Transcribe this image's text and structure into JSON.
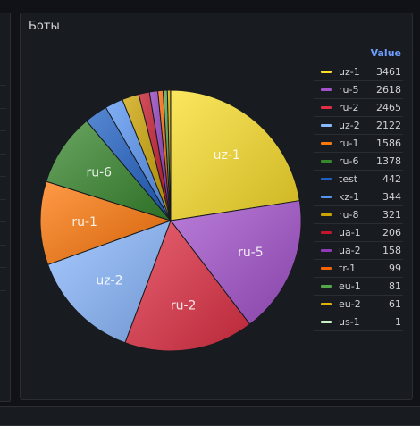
{
  "panel": {
    "title": "Боты"
  },
  "legend": {
    "header": "Value"
  },
  "chart_data": {
    "type": "pie",
    "title": "Боты",
    "legend_placement": "right",
    "slices": [
      {
        "label": "uz-1",
        "value": 3461,
        "color": "#fade2a"
      },
      {
        "label": "ru-5",
        "value": 2618,
        "color": "#a352cc"
      },
      {
        "label": "ru-2",
        "value": 2465,
        "color": "#e02f44"
      },
      {
        "label": "uz-2",
        "value": 2122,
        "color": "#8ab8ff"
      },
      {
        "label": "ru-1",
        "value": 1586,
        "color": "#ff780a"
      },
      {
        "label": "ru-6",
        "value": 1378,
        "color": "#37872d"
      },
      {
        "label": "test",
        "value": 442,
        "color": "#1f60c4"
      },
      {
        "label": "kz-1",
        "value": 344,
        "color": "#5794f2"
      },
      {
        "label": "ru-8",
        "value": 321,
        "color": "#cca300"
      },
      {
        "label": "ua-1",
        "value": 206,
        "color": "#c4162a"
      },
      {
        "label": "ua-2",
        "value": 158,
        "color": "#8f3bb8"
      },
      {
        "label": "tr-1",
        "value": 99,
        "color": "#fa6400"
      },
      {
        "label": "eu-1",
        "value": 81,
        "color": "#56a64b"
      },
      {
        "label": "eu-2",
        "value": 61,
        "color": "#e0b400"
      },
      {
        "label": "us-1",
        "value": 1,
        "color": "#c8f2c2"
      }
    ],
    "slice_labels_shown": [
      "uz-1",
      "ru-5",
      "ru-2",
      "uz-2",
      "ru-1",
      "ru-6"
    ]
  }
}
